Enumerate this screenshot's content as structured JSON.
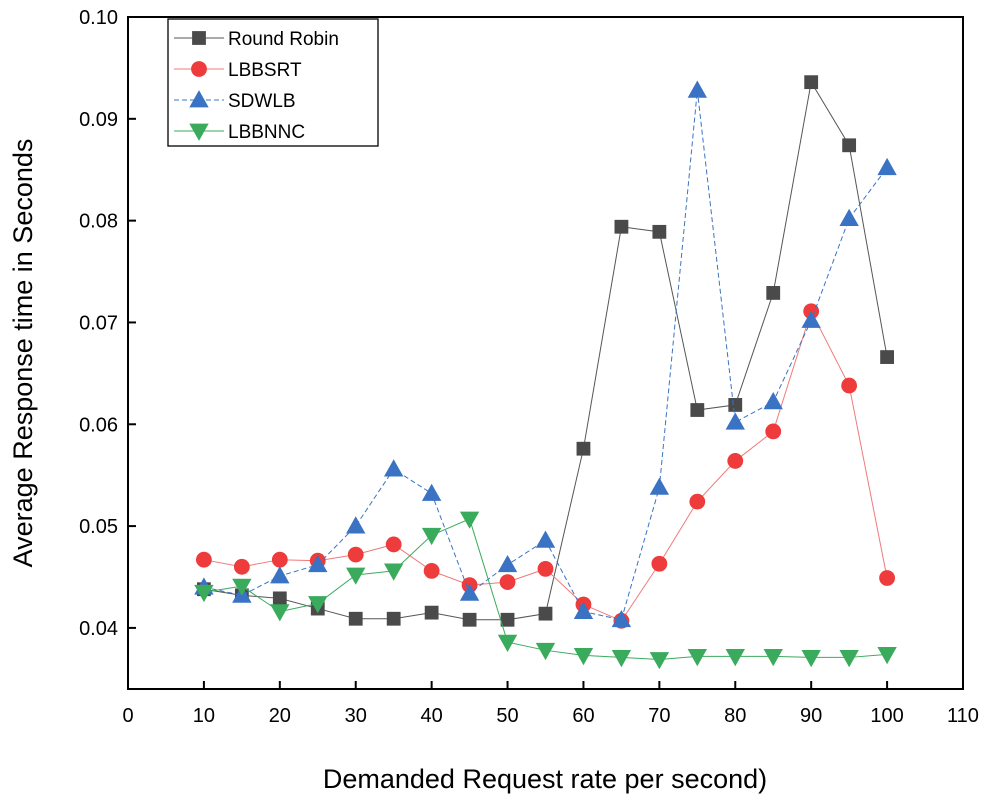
{
  "chart_data": {
    "type": "line",
    "title": "",
    "xlabel": "Demanded Request rate per second)",
    "ylabel": "Average Response time in Seconds",
    "xlim": [
      0,
      110
    ],
    "ylim": [
      0.034,
      0.1
    ],
    "x_ticks": [
      0,
      10,
      20,
      30,
      40,
      50,
      60,
      70,
      80,
      90,
      100,
      110
    ],
    "y_ticks": [
      0.04,
      0.05,
      0.06,
      0.07,
      0.08,
      0.09,
      0.1
    ],
    "x_tick_labels": [
      "0",
      "10",
      "20",
      "30",
      "40",
      "50",
      "60",
      "70",
      "80",
      "90",
      "100",
      "110"
    ],
    "y_tick_labels": [
      "0.04",
      "0.05",
      "0.06",
      "0.07",
      "0.08",
      "0.09",
      "0.10"
    ],
    "grid": false,
    "legend_position": "top-left",
    "x": [
      10,
      15,
      20,
      25,
      30,
      35,
      40,
      45,
      50,
      55,
      60,
      65,
      70,
      75,
      80,
      85,
      90,
      95,
      100
    ],
    "series": [
      {
        "name": "Round Robin",
        "marker": "square",
        "color": "#4a4a4a",
        "line_color": "#555555",
        "dashed": false,
        "values": [
          0.0438,
          0.0432,
          0.0429,
          0.0419,
          0.0409,
          0.0409,
          0.0415,
          0.0408,
          0.0408,
          0.0414,
          0.0576,
          0.0794,
          0.0789,
          0.0614,
          0.0619,
          0.0729,
          0.0936,
          0.0874,
          0.0666
        ]
      },
      {
        "name": "LBBSRT",
        "marker": "circle",
        "color": "#ee3b3b",
        "line_color": "#f07a7a",
        "dashed": false,
        "values": [
          0.0467,
          0.046,
          0.0467,
          0.0466,
          0.0472,
          0.0482,
          0.0456,
          0.0442,
          0.0445,
          0.0458,
          0.0423,
          0.0407,
          0.0463,
          0.0524,
          0.0564,
          0.0593,
          0.0711,
          0.0638,
          0.0449
        ]
      },
      {
        "name": "SDWLB",
        "marker": "triangle-up",
        "color": "#3a73c4",
        "line_color": "#3a73c4",
        "dashed": true,
        "values": [
          0.044,
          0.0432,
          0.0451,
          0.0462,
          0.05,
          0.0556,
          0.0532,
          0.0434,
          0.0462,
          0.0486,
          0.0416,
          0.0408,
          0.0538,
          0.0928,
          0.0602,
          0.0622,
          0.0702,
          0.0802,
          0.0852
        ]
      },
      {
        "name": "LBBNNC",
        "marker": "triangle-down",
        "color": "#3aaa5c",
        "line_color": "#3aaa5c",
        "dashed": false,
        "values": [
          0.0435,
          0.0441,
          0.0416,
          0.0424,
          0.0452,
          0.0456,
          0.0491,
          0.0507,
          0.0386,
          0.0378,
          0.0373,
          0.0371,
          0.0369,
          0.0372,
          0.0372,
          0.0372,
          0.0371,
          0.0371,
          0.0374
        ]
      }
    ]
  }
}
